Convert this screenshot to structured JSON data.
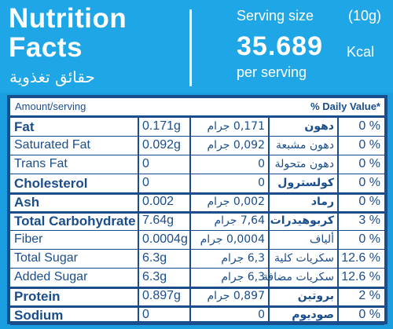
{
  "header": {
    "title_line1": "Nutrition",
    "title_line2": "Facts",
    "title_ar": "حقائق تغذوية",
    "serving_size_label": "Serving size",
    "serving_size_value": "(10g)",
    "kcal_value": "35.689",
    "kcal_unit": "Kcal",
    "per_serving": "per serving"
  },
  "table": {
    "amount_header": "Amount/serving",
    "dv_header": "% Daily Value*",
    "rows": [
      {
        "label": "Fat",
        "amount": "0.171g",
        "amount_ar": "0,171 جرام",
        "label_ar": "دهون",
        "dv": "0 %",
        "bold": true
      },
      {
        "label": "Saturated Fat",
        "amount": "0.092g",
        "amount_ar": "0,092 جرام",
        "label_ar": "دهون مشبعة",
        "dv": "0 %",
        "bold": false
      },
      {
        "label": "Trans Fat",
        "amount": "0",
        "amount_ar": "0",
        "label_ar": "دهون متحولة",
        "dv": "0 %",
        "bold": false
      },
      {
        "label": "Cholesterol",
        "amount": "0",
        "amount_ar": "0",
        "label_ar": "كولسترول",
        "dv": "0 %",
        "bold": true
      },
      {
        "label": "Ash",
        "amount": "0.002",
        "amount_ar": "0,002 جرام",
        "label_ar": "رماد",
        "dv": "0 %",
        "bold": true
      },
      {
        "label": "Total Carbohydrate",
        "amount": "7.64g",
        "amount_ar": "7,64 جرام",
        "label_ar": "كربوهيدرات",
        "dv": "3 %",
        "bold": true
      },
      {
        "label": "Fiber",
        "amount": "0.0004g",
        "amount_ar": "0,0004 جرام",
        "label_ar": "ألياف",
        "dv": "0 %",
        "bold": false
      },
      {
        "label": "Total Sugar",
        "amount": "6.3g",
        "amount_ar": "6,3 جرام",
        "label_ar": "سكريات كلية",
        "dv": "12.6 %",
        "bold": false
      },
      {
        "label": "Added Sugar",
        "amount": "6.3g",
        "amount_ar": "6,3 جرام",
        "label_ar": "سكريات مضافة",
        "dv": "12.6 %",
        "bold": false
      },
      {
        "label": "Protein",
        "amount": "0.897g",
        "amount_ar": "0,897 جرام",
        "label_ar": "بروتين",
        "dv": "2 %",
        "bold": true
      },
      {
        "label": "Sodium",
        "amount": "0",
        "amount_ar": "0",
        "label_ar": "صوديوم",
        "dv": "0 %",
        "bold": true
      }
    ]
  },
  "colors": {
    "background": "#1fa6e6",
    "table_border": "#1a4d8c",
    "text_blue": "#1a4d8c"
  }
}
